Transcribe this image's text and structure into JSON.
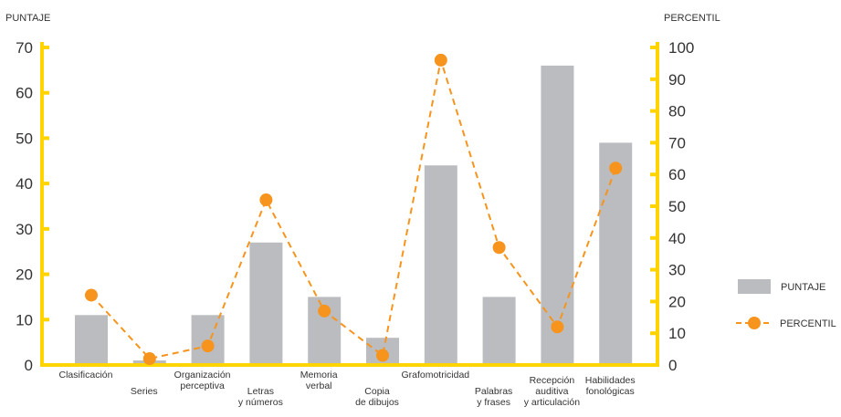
{
  "chart_data": {
    "type": "bar",
    "title": "",
    "ylabel_left": "PUNTAJE",
    "ylabel_right": "PERCENTIL",
    "ylim_left": [
      0,
      70
    ],
    "ylim_right": [
      0,
      100
    ],
    "yticks_left": [
      0,
      10,
      20,
      30,
      40,
      50,
      60,
      70
    ],
    "yticks_right": [
      0,
      10,
      20,
      30,
      40,
      50,
      60,
      70,
      80,
      90,
      100
    ],
    "grid": false,
    "legend_position": "right",
    "categories": [
      [
        "Clasificación"
      ],
      [
        "Series"
      ],
      [
        "Organización",
        "perceptiva"
      ],
      [
        "Letras",
        "y números"
      ],
      [
        "Memoria",
        "verbal"
      ],
      [
        "Copia",
        "de dibujos"
      ],
      [
        "Grafomotricidad"
      ],
      [
        "Palabras",
        "y frases"
      ],
      [
        "Recepción",
        "auditiva",
        "y articulación"
      ],
      [
        "Habilidades",
        "fonológicas"
      ]
    ],
    "series": [
      {
        "name": "PUNTAJE",
        "type": "bar",
        "axis": "left",
        "color": "#bbbcbf",
        "values": [
          11,
          1,
          11,
          27,
          15,
          6,
          44,
          15,
          66,
          49
        ]
      },
      {
        "name": "PERCENTIL",
        "type": "line",
        "axis": "right",
        "style": "dashed",
        "color": "#f7941d",
        "values": [
          22,
          2,
          6,
          52,
          17,
          3,
          96,
          37,
          12,
          62
        ]
      }
    ],
    "colors": {
      "axis": "#ffd400",
      "text": "#333333"
    }
  }
}
